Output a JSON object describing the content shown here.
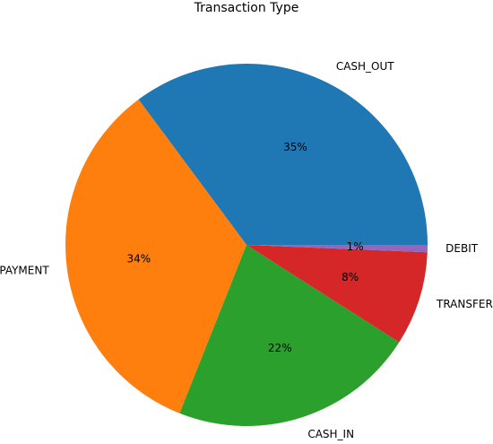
{
  "chart_data": {
    "type": "pie",
    "title": "Transaction Type",
    "start_angle_deg": 0,
    "direction": "counterclockwise",
    "slices": [
      {
        "label": "CASH_OUT",
        "value": 35.17,
        "pct_label": "35%",
        "color": "#1f77b4"
      },
      {
        "label": "PAYMENT",
        "value": 33.81,
        "pct_label": "34%",
        "color": "#ff7f0e"
      },
      {
        "label": "CASH_IN",
        "value": 21.99,
        "pct_label": "22%",
        "color": "#2ca02c"
      },
      {
        "label": "TRANSFER",
        "value": 8.38,
        "pct_label": "8%",
        "color": "#d62728"
      },
      {
        "label": "DEBIT",
        "value": 0.65,
        "pct_label": "1%",
        "color": "#9467bd"
      }
    ]
  }
}
